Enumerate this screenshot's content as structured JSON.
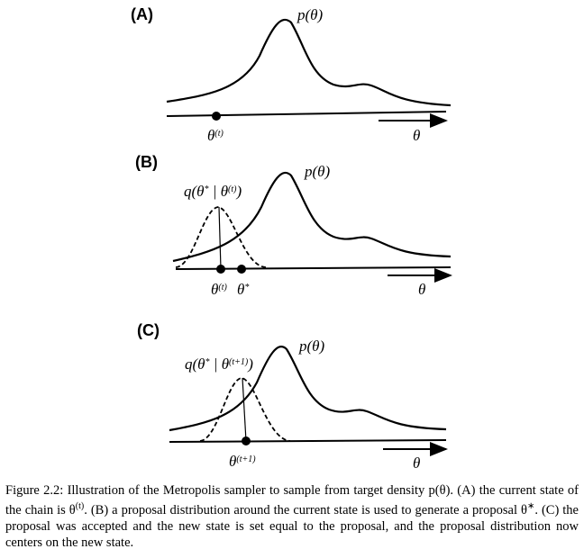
{
  "panels": [
    {
      "label": "(A)",
      "density_label": [
        {
          "text": "p(θ)"
        }
      ],
      "proposal_label": null,
      "point_labels": [
        [
          {
            "text": "θ"
          },
          {
            "sup": "(t)"
          }
        ]
      ],
      "axis_label": "θ"
    },
    {
      "label": "(B)",
      "density_label": [
        {
          "text": "p(θ)"
        }
      ],
      "proposal_label": [
        {
          "text": "q(θ"
        },
        {
          "sup": "*"
        },
        {
          "text": " | θ"
        },
        {
          "sup": "(t)"
        },
        {
          "text": ")"
        }
      ],
      "point_labels": [
        [
          {
            "text": "θ"
          },
          {
            "sup": "(t)"
          }
        ],
        [
          {
            "text": "θ"
          },
          {
            "sup": "*"
          }
        ]
      ],
      "axis_label": "θ"
    },
    {
      "label": "(C)",
      "density_label": [
        {
          "text": "p(θ)"
        }
      ],
      "proposal_label": [
        {
          "text": "q(θ"
        },
        {
          "sup": "*"
        },
        {
          "text": " | θ"
        },
        {
          "sup": "(t+1)"
        },
        {
          "text": ")"
        }
      ],
      "point_labels": [
        [
          {
            "text": "θ"
          },
          {
            "sup": "(t+1)"
          }
        ]
      ],
      "axis_label": "θ"
    }
  ],
  "caption": [
    {
      "text": "Figure 2.2: Illustration of the Metropolis sampler to sample from target density p(θ). (A) the current state of the chain is θ"
    },
    {
      "sup": "(t)"
    },
    {
      "text": ". (B) a proposal distribution around the current state is used to generate a proposal θ"
    },
    {
      "sup": "∗"
    },
    {
      "text": ". (C) the proposal was accepted and the new state is set equal to the proposal, and the proposal distribution now centers on the new state."
    }
  ]
}
